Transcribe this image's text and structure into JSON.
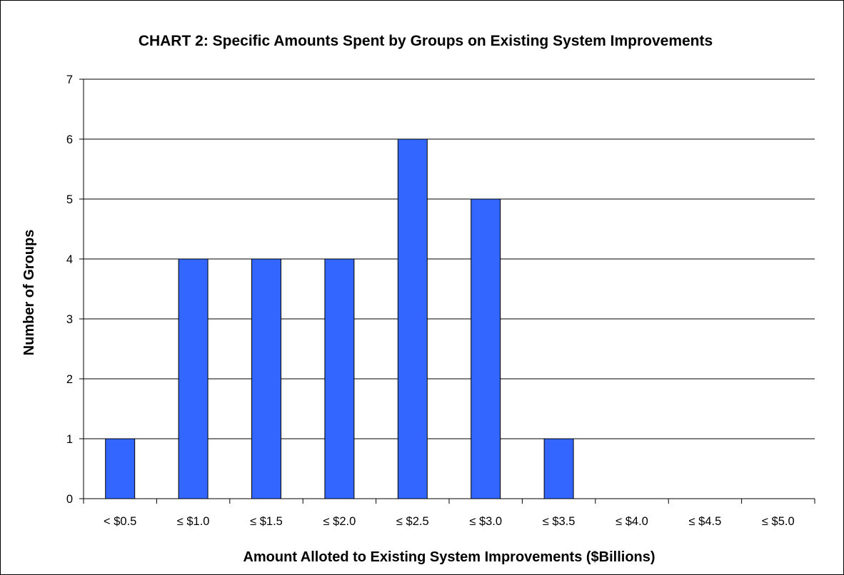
{
  "chart_data": {
    "type": "bar",
    "title": "CHART 2: Specific Amounts Spent by Groups on Existing System Improvements",
    "xlabel": "Amount Alloted to Existing System Improvements ($Billions)",
    "ylabel": "Number of Groups",
    "categories": [
      "< $0.5",
      "≤ $1.0",
      "≤ $1.5",
      "≤ $2.0",
      "≤ $2.5",
      "≤ $3.0",
      "≤ $3.5",
      "≤ $4.0",
      "≤ $4.5",
      "≤ $5.0"
    ],
    "values": [
      1,
      4,
      4,
      4,
      6,
      5,
      1,
      0,
      0,
      0
    ],
    "ylim": [
      0,
      7
    ],
    "yticks": [
      0,
      1,
      2,
      3,
      4,
      5,
      6,
      7
    ],
    "grid": true,
    "legend": "none",
    "bar_color": "#3366ff"
  }
}
